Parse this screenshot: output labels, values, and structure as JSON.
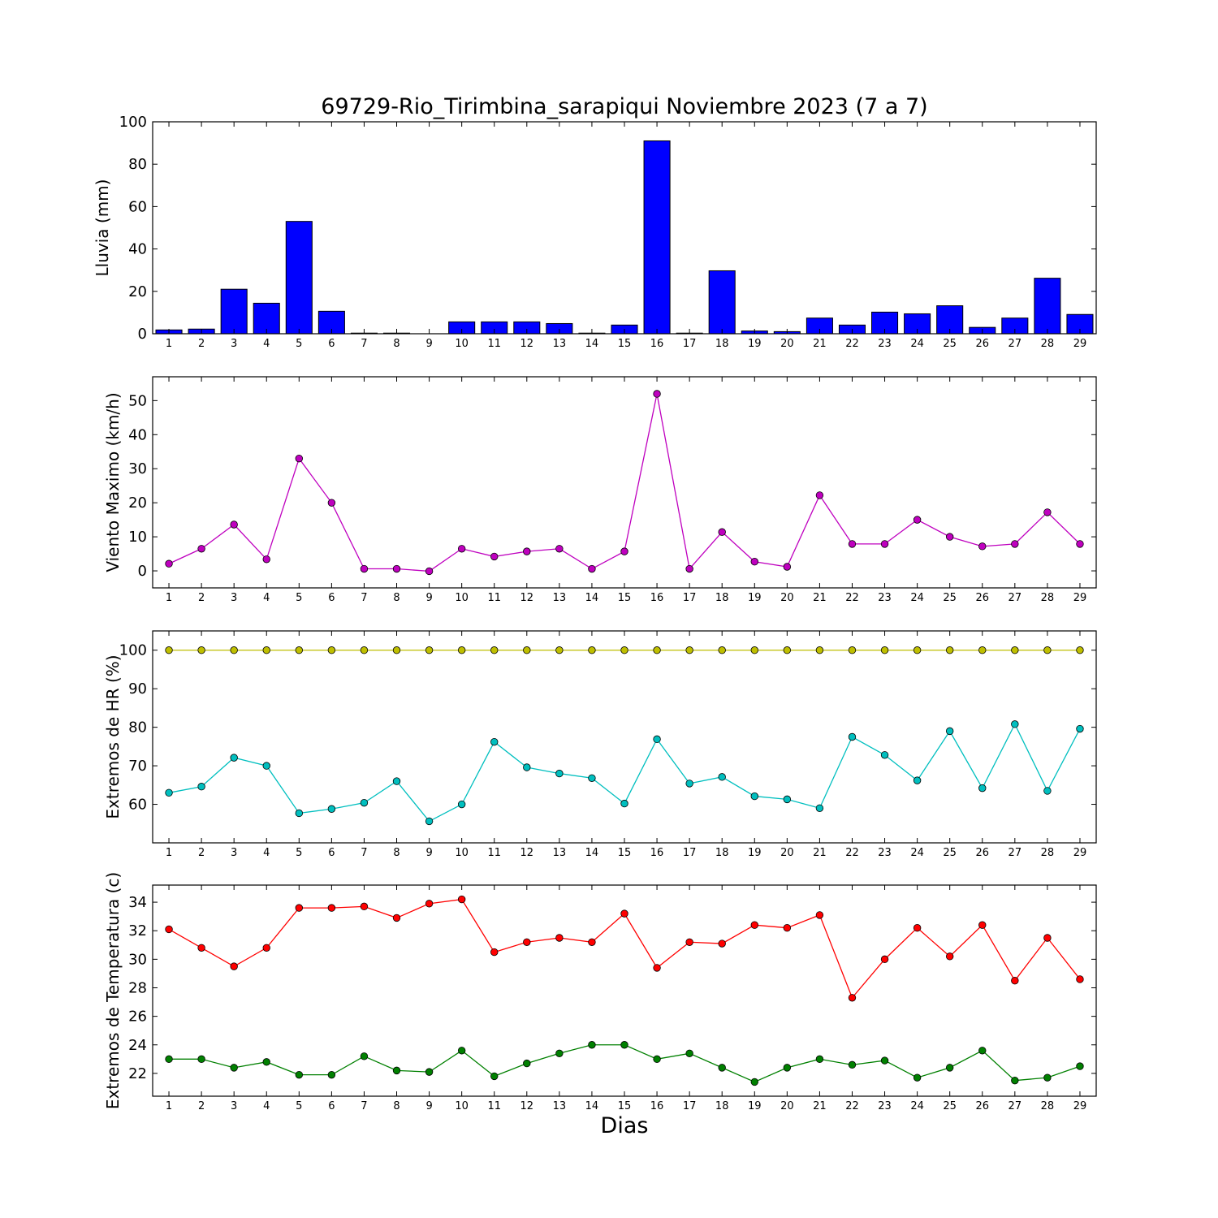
{
  "figure": {
    "title": "69729-Rio_Tirimbina_sarapiqui Noviembre 2023  (7 a 7)",
    "xlabel": "Dias"
  },
  "chart_data": [
    {
      "type": "bar",
      "ylabel": "Lluvia (mm)",
      "ylim": [
        0,
        100
      ],
      "yticks": [
        0,
        20,
        40,
        60,
        80,
        100
      ],
      "categories": [
        1,
        2,
        3,
        4,
        5,
        6,
        7,
        8,
        9,
        10,
        11,
        12,
        13,
        14,
        15,
        16,
        17,
        18,
        19,
        20,
        21,
        22,
        23,
        24,
        25,
        26,
        27,
        28,
        29
      ],
      "series": [
        {
          "color": "#0000ff",
          "values": [
            1.8,
            2.2,
            21.0,
            14.4,
            53.0,
            10.6,
            0.3,
            0.3,
            0.0,
            5.6,
            5.6,
            5.6,
            4.8,
            0.3,
            4.1,
            91.0,
            0.3,
            29.7,
            1.3,
            1.0,
            7.4,
            4.1,
            10.2,
            9.4,
            13.2,
            3.0,
            7.4,
            26.2,
            9.1
          ]
        }
      ],
      "grid": false
    },
    {
      "type": "line",
      "ylabel": "Viento Maximo (km/h)",
      "ylim": [
        -5,
        57
      ],
      "yticks": [
        0,
        10,
        20,
        30,
        40,
        50
      ],
      "x": [
        1,
        2,
        3,
        4,
        5,
        6,
        7,
        8,
        9,
        10,
        11,
        12,
        13,
        14,
        15,
        16,
        17,
        18,
        19,
        20,
        21,
        22,
        23,
        24,
        25,
        26,
        27,
        28,
        29
      ],
      "series": [
        {
          "color": "#bf00bf",
          "values": [
            2.1,
            6.5,
            13.6,
            3.4,
            33.0,
            20.0,
            0.6,
            0.6,
            -0.1,
            6.5,
            4.2,
            5.7,
            6.5,
            0.6,
            5.7,
            52.0,
            0.6,
            11.4,
            2.7,
            1.2,
            22.2,
            7.9,
            7.9,
            15.0,
            10.0,
            7.2,
            7.9,
            17.2,
            7.9
          ]
        }
      ],
      "grid": false
    },
    {
      "type": "line",
      "ylabel": "Extremos de HR (%)",
      "ylim": [
        50,
        105
      ],
      "yticks": [
        60,
        70,
        80,
        90,
        100
      ],
      "x": [
        1,
        2,
        3,
        4,
        5,
        6,
        7,
        8,
        9,
        10,
        11,
        12,
        13,
        14,
        15,
        16,
        17,
        18,
        19,
        20,
        21,
        22,
        23,
        24,
        25,
        26,
        27,
        28,
        29
      ],
      "series": [
        {
          "color": "#bfbf00",
          "values": [
            100,
            100,
            100,
            100,
            100,
            100,
            100,
            100,
            100,
            100,
            100,
            100,
            100,
            100,
            100,
            100,
            100,
            100,
            100,
            100,
            100,
            100,
            100,
            100,
            100,
            100,
            100,
            100,
            100
          ]
        },
        {
          "color": "#00bfbf",
          "values": [
            63.0,
            64.6,
            72.1,
            70.0,
            57.7,
            58.8,
            60.4,
            66.0,
            55.6,
            60.0,
            76.2,
            69.6,
            68.0,
            66.8,
            60.2,
            76.9,
            65.4,
            67.1,
            62.1,
            61.3,
            59.0,
            77.5,
            72.8,
            66.2,
            79.0,
            64.2,
            80.8,
            63.5,
            79.6
          ]
        }
      ],
      "grid": false
    },
    {
      "type": "line",
      "ylabel": "Extremos de Temperatura (c)",
      "ylim": [
        20.4,
        35.2
      ],
      "yticks": [
        22,
        24,
        26,
        28,
        30,
        32,
        34
      ],
      "x": [
        1,
        2,
        3,
        4,
        5,
        6,
        7,
        8,
        9,
        10,
        11,
        12,
        13,
        14,
        15,
        16,
        17,
        18,
        19,
        20,
        21,
        22,
        23,
        24,
        25,
        26,
        27,
        28,
        29
      ],
      "series": [
        {
          "color": "#ff0000",
          "values": [
            32.1,
            30.8,
            29.5,
            30.8,
            33.6,
            33.6,
            33.7,
            32.9,
            33.9,
            34.2,
            30.5,
            31.2,
            31.5,
            31.2,
            33.2,
            29.4,
            31.2,
            31.1,
            32.4,
            32.2,
            33.1,
            27.3,
            30.0,
            32.2,
            30.2,
            32.4,
            28.5,
            31.5,
            28.6
          ]
        },
        {
          "color": "#008000",
          "values": [
            23.0,
            23.0,
            22.4,
            22.8,
            21.9,
            21.9,
            23.2,
            22.2,
            22.1,
            23.6,
            21.8,
            22.7,
            23.4,
            24.0,
            24.0,
            23.0,
            23.4,
            22.4,
            21.4,
            22.4,
            23.0,
            22.6,
            22.9,
            21.7,
            22.4,
            23.6,
            21.5,
            21.7,
            22.5
          ]
        }
      ],
      "grid": false
    }
  ]
}
